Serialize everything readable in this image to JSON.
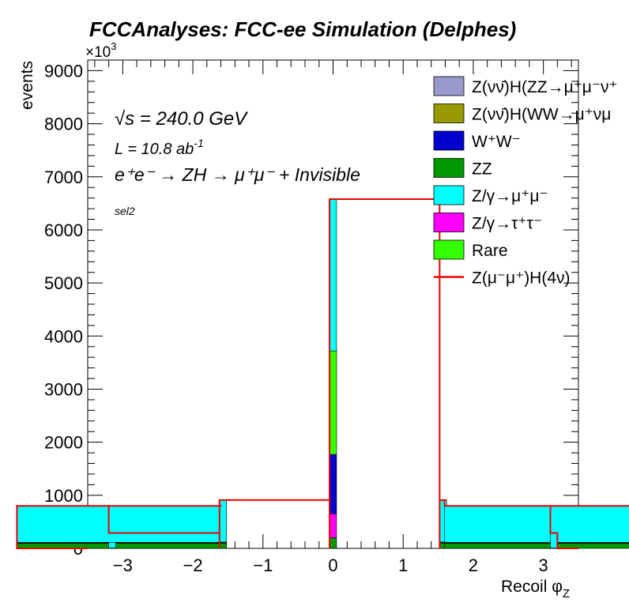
{
  "chart_data": {
    "type": "bar",
    "title": "FCCAnalyses: FCC-ee Simulation (Delphes)",
    "xlabel": "Recoil φ",
    "xlabel_sub": "Z",
    "ylabel": "events",
    "y_multiplier": "×10",
    "y_multiplier_exp": "3",
    "xlim": [
      -3.5,
      3.5
    ],
    "ylim": [
      0,
      9200
    ],
    "x_ticks": [
      -3,
      -2,
      -1,
      0,
      1,
      2,
      3
    ],
    "x_tick_labels": [
      "−3",
      "−2",
      "−1",
      "0",
      "1",
      "2",
      "3"
    ],
    "y_ticks": [
      0,
      1000,
      2000,
      3000,
      4000,
      5000,
      6000,
      7000,
      8000,
      9000
    ],
    "y_tick_labels": [
      "0",
      "1000",
      "2000",
      "3000",
      "4000",
      "5000",
      "6000",
      "7000",
      "8000",
      "9000"
    ],
    "annotations": {
      "sqrts": "√s = 240.0 GeV",
      "lumi": "L = 10.8 ab",
      "lumi_exp": "-1",
      "process": "e⁺e⁻ → ZH → μ⁺μ⁻ + Invisible",
      "selection": "sel2"
    },
    "legend_position": "top-right",
    "legend": [
      {
        "label": "Z(νν̄)H(ZZ→μ⁺μ⁻ν⁺",
        "color": "#9999cc",
        "kind": "box"
      },
      {
        "label": "Z(νν̄)H(WW→μ⁺νμ",
        "color": "#999900",
        "kind": "box"
      },
      {
        "label": "W⁺W⁻",
        "color": "#0000cc",
        "kind": "box"
      },
      {
        "label": "ZZ",
        "color": "#009900",
        "kind": "box"
      },
      {
        "label": "Z/γ→μ⁺μ⁻",
        "color": "#00ffff",
        "kind": "box"
      },
      {
        "label": "Z/γ→τ⁺τ⁻",
        "color": "#ff00ff",
        "kind": "box"
      },
      {
        "label": "Rare",
        "color": "#33ff00",
        "kind": "box"
      },
      {
        "label": "Z(μ⁻μ⁺)H(4ν)",
        "color": "#ee0000",
        "kind": "line"
      }
    ],
    "bin_centers": [
      -3.15,
      -3.05,
      -1.57,
      0,
      1.57,
      3.05,
      3.15
    ],
    "series": [
      {
        "name": "ZZ",
        "color": "#009900",
        "values": [
          5,
          95,
          100,
          200,
          100,
          95,
          5
        ]
      },
      {
        "name": "Z/γ→τ⁺τ⁻",
        "color": "#ff00ff",
        "values": [
          0,
          5,
          5,
          450,
          5,
          5,
          0
        ]
      },
      {
        "name": "W⁺W⁻",
        "color": "#0000cc",
        "values": [
          0,
          3,
          3,
          1120,
          3,
          3,
          0
        ]
      },
      {
        "name": "Rare",
        "color": "#33ff00",
        "values": [
          1,
          10,
          12,
          1950,
          12,
          10,
          1
        ]
      },
      {
        "name": "Z/γ→μ⁺μ⁻",
        "color": "#00ffff",
        "values": [
          280,
          690,
          790,
          2860,
          790,
          690,
          280
        ]
      }
    ],
    "total_line": {
      "name": "Z(μ⁻μ⁺)H(4ν)",
      "color": "#ee0000",
      "total_values": [
        290,
        800,
        910,
        6580,
        910,
        800,
        290
      ]
    }
  }
}
